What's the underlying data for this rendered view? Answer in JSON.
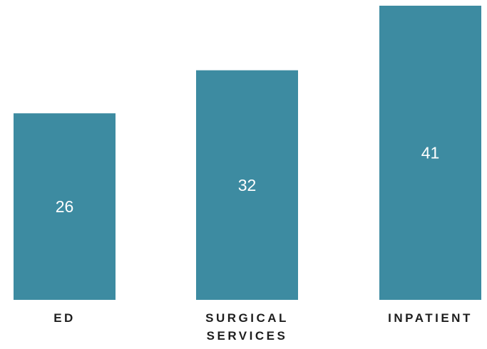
{
  "chart_data": {
    "type": "bar",
    "categories": [
      [
        "ED"
      ],
      [
        "SURGICAL",
        "SERVICES"
      ],
      [
        "INPATIENT"
      ]
    ],
    "values": [
      26,
      32,
      41
    ],
    "value_labels": [
      "26",
      "32",
      "41"
    ],
    "title": "",
    "xlabel": "",
    "ylabel": "",
    "ylim": [
      0,
      41
    ],
    "grid": false,
    "bar_color": "#3D8BA1",
    "label_color": "#1E1E1E",
    "value_label_color": "#FFFFFF"
  }
}
